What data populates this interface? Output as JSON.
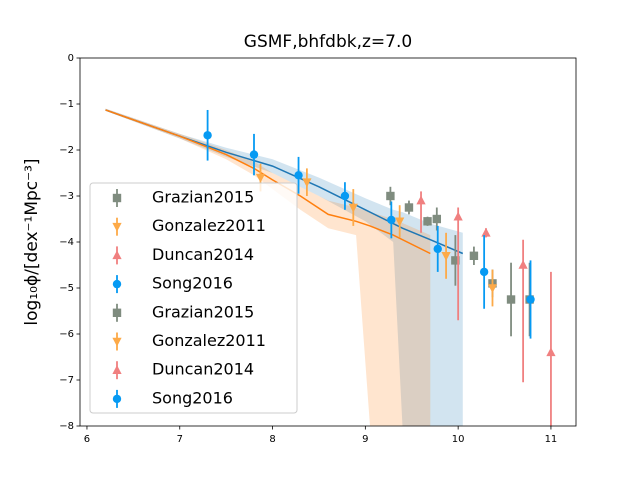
{
  "chart_data": {
    "type": "errorbar_scatter_line",
    "title": "GSMF,bhfdbk,z=7.0",
    "ylabel": "log₁₀ϕ/[dex⁻¹Mpc⁻³]",
    "xlim": [
      5.925,
      11.27
    ],
    "ylim": [
      -8,
      0
    ],
    "xticks": [
      6,
      7,
      8,
      9,
      10,
      11
    ],
    "yticks": [
      0,
      {
        "value": -1,
        "label": "−1"
      },
      {
        "value": -2,
        "label": "−2"
      },
      {
        "value": -3,
        "label": "−3"
      },
      {
        "value": -4,
        "label": "−4"
      },
      {
        "value": -5,
        "label": "−5"
      },
      {
        "value": -6,
        "label": "−6"
      },
      {
        "value": -7,
        "label": "−7"
      },
      {
        "value": -8,
        "label": "−8"
      }
    ],
    "lines": [
      {
        "color": "#1f77b4",
        "x": [
          6.2,
          7.0,
          7.5,
          8.0,
          8.5,
          9.0,
          9.3,
          9.4,
          9.7,
          10.05
        ],
        "values": [
          -1.13,
          -1.7,
          -2.05,
          -2.35,
          -2.8,
          -3.3,
          -3.6,
          -3.7,
          -3.95,
          -4.25
        ],
        "lower": [
          -1.15,
          -1.75,
          -2.15,
          -2.5,
          -3.0,
          -3.55,
          -4.0,
          -8,
          -8,
          -8
        ],
        "upper": [
          -1.1,
          -1.65,
          -1.95,
          -2.2,
          -2.6,
          -3.05,
          -3.3,
          -3.35,
          -3.6,
          -3.8
        ]
      },
      {
        "color": "#ff7f0e",
        "x": [
          6.2,
          7.0,
          7.5,
          7.8,
          8.0,
          8.3,
          8.6,
          8.9,
          9.05,
          9.3,
          9.7
        ],
        "values": [
          -1.13,
          -1.7,
          -2.1,
          -2.4,
          -2.65,
          -3.0,
          -3.4,
          -3.55,
          -3.65,
          -3.85,
          -4.25
        ],
        "lower": [
          -1.15,
          -1.75,
          -2.2,
          -2.55,
          -2.85,
          -3.3,
          -3.7,
          -3.85,
          -8,
          -8,
          -8
        ],
        "upper": [
          -1.1,
          -1.65,
          -2.0,
          -2.25,
          -2.5,
          -2.8,
          -3.1,
          -3.25,
          -3.35,
          -3.5,
          -3.85
        ]
      }
    ],
    "series": [
      {
        "name": "Grazian2015",
        "color": "#7f8c7f",
        "marker": "square",
        "x": [
          9.27,
          9.47,
          9.67,
          9.77,
          9.97,
          10.17,
          10.37,
          10.57,
          10.77
        ],
        "values": [
          -3.0,
          -3.25,
          -3.55,
          -3.5,
          -4.4,
          -4.3,
          -4.9,
          -5.25,
          -5.25
        ],
        "err": [
          0.2,
          0.15,
          0.1,
          0.25,
          0.55,
          0.2,
          0.3,
          0.8,
          0.8
        ]
      },
      {
        "name": "Gonzalez2011",
        "color": "#fdaa48",
        "marker": "down",
        "x": [
          7.87,
          8.37,
          8.87,
          9.37,
          9.87,
          10.37
        ],
        "values": [
          -2.6,
          -2.7,
          -3.25,
          -3.55,
          -4.3,
          -5.0
        ],
        "err": [
          0.3,
          0.3,
          0.4,
          0.35,
          0.5,
          0.4
        ]
      },
      {
        "name": "Duncan2014",
        "color": "#f08080",
        "marker": "up",
        "x": [
          9.6,
          10.0,
          10.3,
          10.7,
          11.0
        ],
        "values": [
          -3.1,
          -3.45,
          -3.8,
          -4.5,
          -6.4
        ],
        "err_low": [
          0.7,
          2.25,
          0.1,
          2.55,
          1.6
        ],
        "err_high": [
          0.2,
          0.2,
          0.1,
          0.55,
          1.75
        ]
      },
      {
        "name": "Song2016",
        "color": "#069af3",
        "marker": "circle",
        "x": [
          7.3,
          7.8,
          8.28,
          8.78,
          9.28,
          9.78,
          10.28,
          10.78
        ],
        "values": [
          -1.68,
          -2.1,
          -2.55,
          -3.0,
          -3.52,
          -4.15,
          -4.65,
          -5.25
        ],
        "err": [
          0.55,
          0.45,
          0.4,
          0.3,
          0.4,
          0.5,
          0.8,
          0.85
        ]
      }
    ],
    "legend": [
      {
        "name": "Grazian2015",
        "color": "#7f8c7f",
        "marker": "square"
      },
      {
        "name": "Gonzalez2011",
        "color": "#fdaa48",
        "marker": "down"
      },
      {
        "name": "Duncan2014",
        "color": "#f08080",
        "marker": "up"
      },
      {
        "name": "Song2016",
        "color": "#069af3",
        "marker": "circle"
      },
      {
        "name": "Grazian2015",
        "color": "#7f8c7f",
        "marker": "square"
      },
      {
        "name": "Gonzalez2011",
        "color": "#fdaa48",
        "marker": "down"
      },
      {
        "name": "Duncan2014",
        "color": "#f08080",
        "marker": "up"
      },
      {
        "name": "Song2016",
        "color": "#069af3",
        "marker": "circle"
      }
    ]
  }
}
